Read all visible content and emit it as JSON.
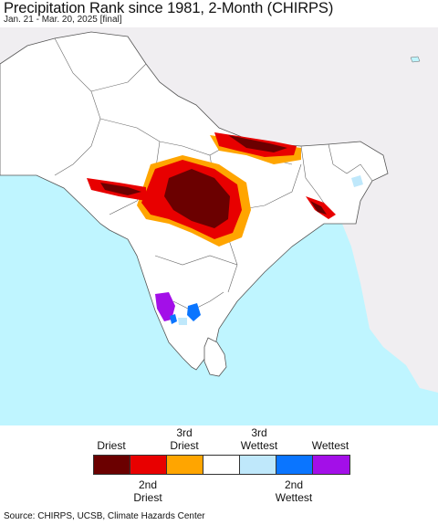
{
  "header": {
    "title": "Precipitation Rank since 1981, 2-Month (CHIRPS)",
    "subtitle": "Jan. 21 - Mar. 20, 2025 [final]"
  },
  "colors": {
    "ocean": "#bff5ff",
    "land_study": "#ffffff",
    "land_outside": "#f0eef1",
    "border": "#555555"
  },
  "legend": {
    "top_labels": [
      "Driest",
      "3rd\nDriest",
      "3rd\nWettest",
      "Wettest"
    ],
    "bottom_labels": [
      "2nd\nDriest",
      "2nd\nWettest"
    ],
    "swatches": [
      {
        "rank": "Driest",
        "color": "#6b0000"
      },
      {
        "rank": "2nd Driest",
        "color": "#e80000"
      },
      {
        "rank": "3rd Driest",
        "color": "#ffa500"
      },
      {
        "rank": "normal",
        "color": "#ffffff"
      },
      {
        "rank": "3rd Wettest",
        "color": "#bfe8fb"
      },
      {
        "rank": "2nd Wettest",
        "color": "#0a75ff"
      },
      {
        "rank": "Wettest",
        "color": "#a30fe8"
      }
    ]
  },
  "footer": {
    "source": "Source: CHIRPS, UCSB, Climate Hazards Center"
  }
}
